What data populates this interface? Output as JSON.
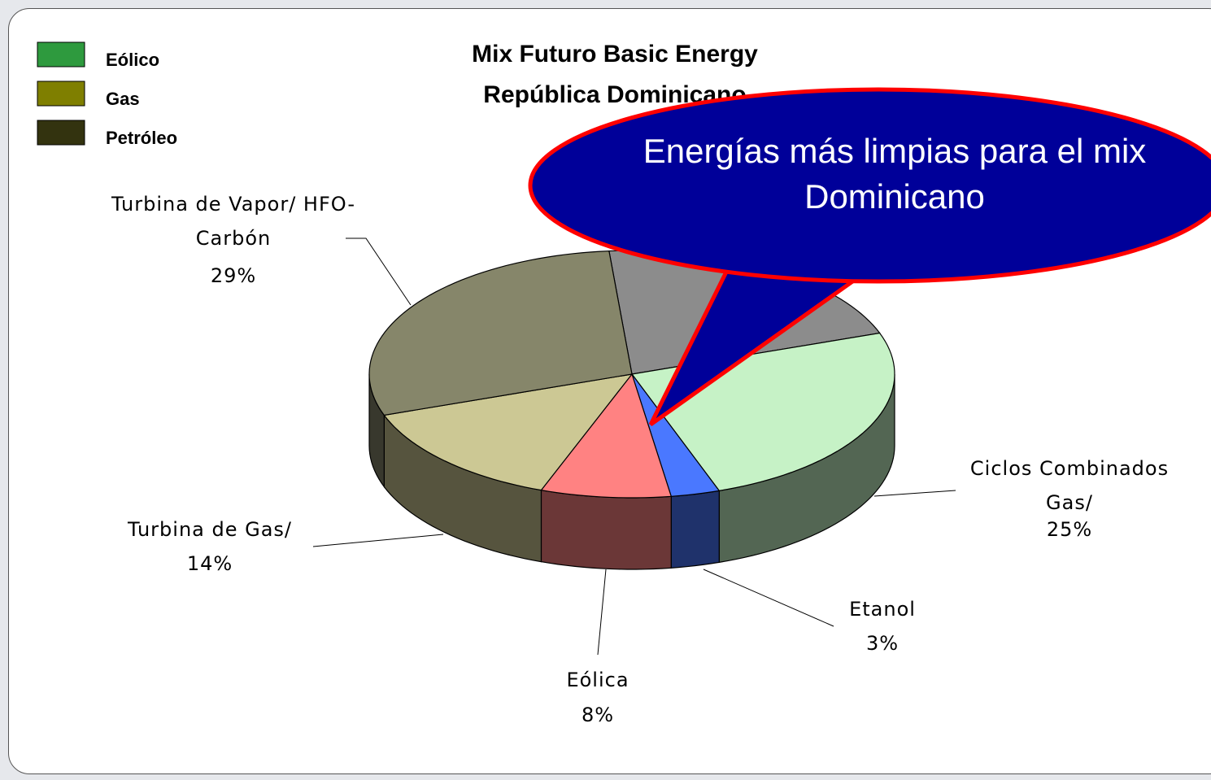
{
  "chart_data": {
    "type": "pie",
    "title": "Mix Futuro Basic Energy",
    "subtitle": "República Dominicano",
    "categories": [
      null,
      "Ciclos Combinados Gas/",
      "Etanol",
      "Eólica",
      "Turbina de Gas/",
      "Turbina de Vapor/ HFO-Carbón"
    ],
    "values": [
      21,
      25,
      3,
      8,
      14,
      29
    ],
    "value_labels": [
      null,
      "25%",
      "3%",
      "8%",
      "14%",
      "29%"
    ],
    "colors": [
      "#8c8c8c",
      "#c6f2c6",
      "#4a78ff",
      "#ff8282",
      "#ccc894",
      "#86866a"
    ],
    "legend": [
      {
        "name": "Eólico",
        "color": "#2e9a3e"
      },
      {
        "name": "Gas",
        "color": "#7f7f00"
      },
      {
        "name": "Petróleo",
        "color": "#33330f"
      }
    ],
    "annotation": "Energías más limpias para el mix Dominicano"
  }
}
